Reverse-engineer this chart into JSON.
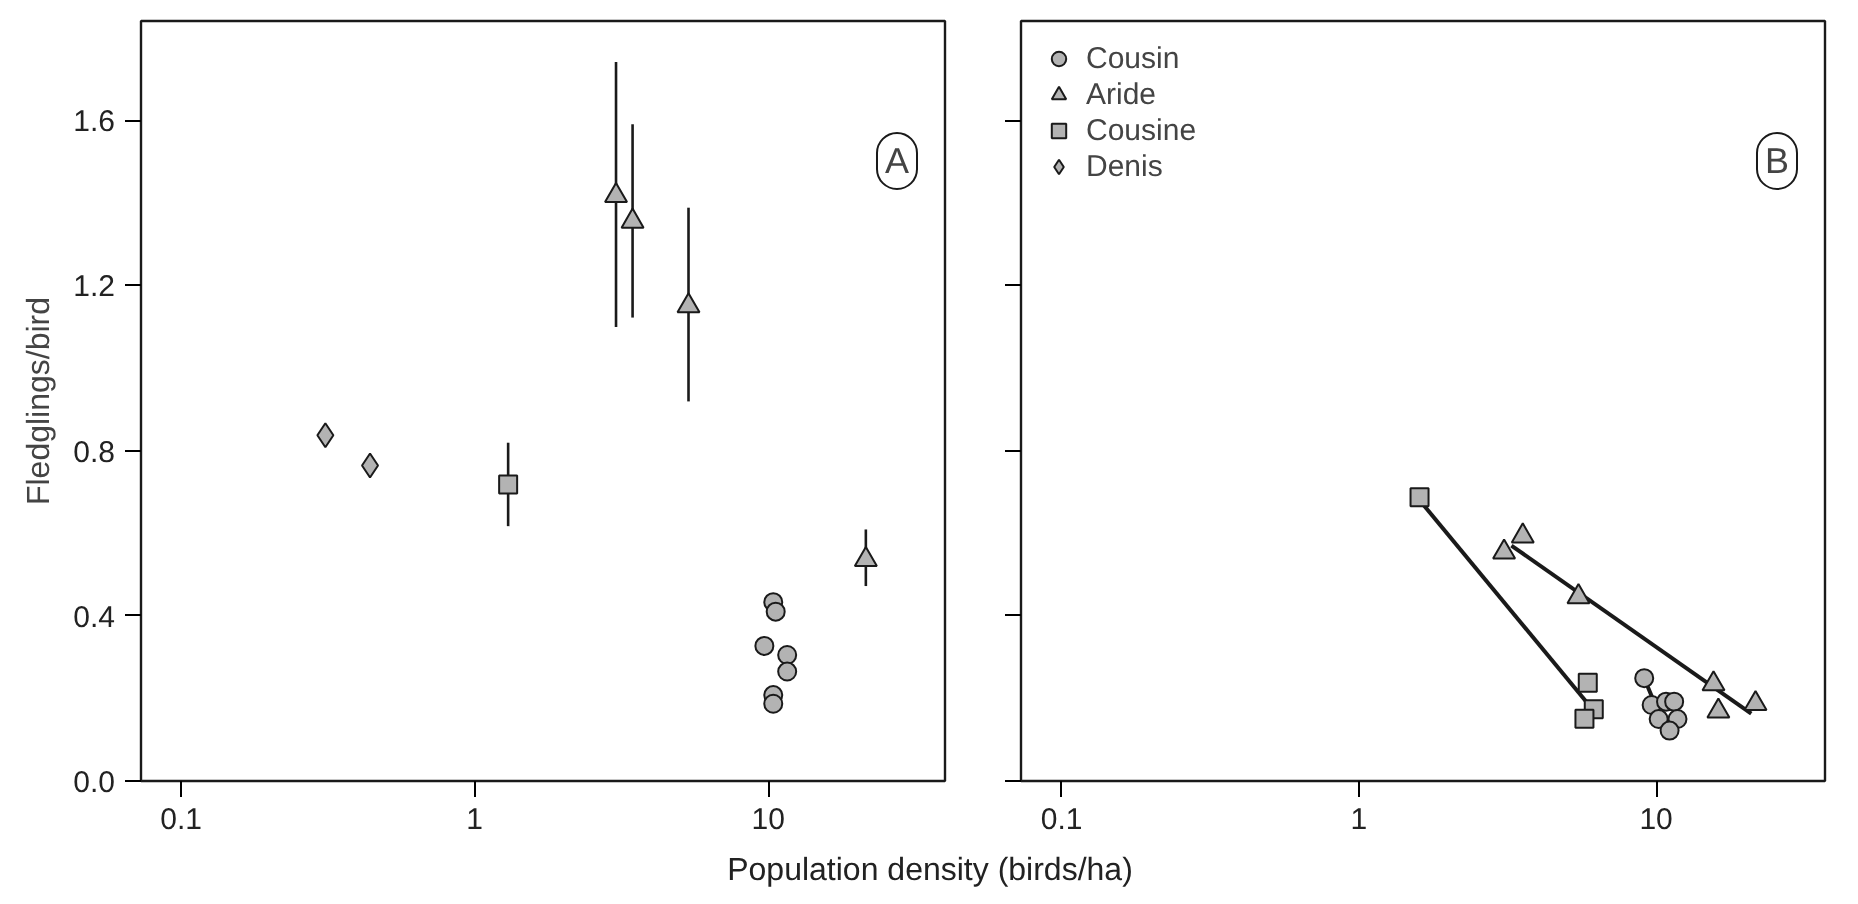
{
  "chart_data": [
    {
      "type": "scatter",
      "xlabel": "Population density (birds/ha)",
      "ylabel": "Fledglings/bird",
      "log": "x",
      "xlim": [
        0.073,
        40
      ],
      "ylim": [
        0,
        1.84
      ],
      "xticks": [
        0.1,
        1,
        10
      ],
      "yticks": [
        {
          "value": 0,
          "label": "0.0"
        },
        0.4,
        0.8,
        1.2,
        1.6
      ],
      "grid": false,
      "legend": false,
      "annotations": [
        "A"
      ],
      "series": [
        {
          "color": "#b3b3b3",
          "marker": "circle",
          "x": [
            10.4,
            10.6,
            9.7,
            11.6,
            11.6,
            10.4,
            10.4
          ],
          "values": [
            0.433,
            0.41,
            0.327,
            0.305,
            0.265,
            0.208,
            0.187
          ]
        },
        {
          "color": "#b3b3b3",
          "marker": "triangle",
          "x": [
            3.03,
            3.45,
            5.35,
            21.5
          ],
          "values": [
            1.417,
            1.355,
            1.15,
            0.536
          ],
          "errors": [
            [
              1.099,
              1.741
            ],
            [
              1.122,
              1.59
            ],
            [
              0.919,
              1.388
            ],
            [
              0.472,
              0.609
            ]
          ]
        },
        {
          "color": "#b3b3b3",
          "marker": "square",
          "x": [
            1.3
          ],
          "values": [
            0.718
          ],
          "errors": [
            [
              0.617,
              0.819
            ]
          ]
        },
        {
          "color": "#b3b3b3",
          "marker": "diamond",
          "x": [
            0.31,
            0.44
          ],
          "values": [
            0.837,
            0.764
          ]
        }
      ]
    },
    {
      "type": "scatter",
      "log": "x",
      "xlim": [
        0.073,
        37
      ],
      "ylim": [
        0,
        1.84
      ],
      "xticks": [
        0.1,
        1,
        10
      ],
      "yticks": [
        0,
        0.4,
        0.8,
        1.2,
        1.6
      ],
      "tick_labels": "x",
      "grid": false,
      "legend": "top left",
      "annotations": [
        "B"
      ],
      "series": [
        {
          "name": "Cousin",
          "color": "#b3b3b3",
          "marker": "circle",
          "x": [
            9.12,
            9.66,
            10.8,
            11.5,
            10.2,
            11.8,
            11.1
          ],
          "values": [
            0.249,
            0.184,
            0.192,
            0.192,
            0.15,
            0.15,
            0.122
          ]
        },
        {
          "name": "Aride",
          "color": "#b3b3b3",
          "marker": "triangle",
          "x": [
            3.56,
            3.08,
            5.48,
            15.6,
            16.2,
            21.6
          ],
          "values": [
            0.593,
            0.554,
            0.446,
            0.235,
            0.169,
            0.187
          ]
        },
        {
          "name": "Cousine",
          "color": "#b3b3b3",
          "marker": "square",
          "x": [
            1.6,
            5.89,
            6.17,
            5.74
          ],
          "values": [
            0.687,
            0.238,
            0.174,
            0.151
          ]
        },
        {
          "name": "Denis",
          "color": "#b3b3b3",
          "marker": "diamond"
        },
        {
          "type": "line",
          "color": "#1a1a1a",
          "marker": "none",
          "x": [
            9.12,
            10.0
          ],
          "values": [
            0.249,
            0.18
          ]
        },
        {
          "type": "line",
          "color": "#1a1a1a",
          "marker": "none",
          "x": [
            3.26,
            20.9
          ],
          "values": [
            0.57,
            0.163
          ]
        },
        {
          "type": "line",
          "color": "#1a1a1a",
          "marker": "none",
          "x": [
            1.6,
            5.85
          ],
          "values": [
            0.68,
            0.19
          ]
        }
      ]
    }
  ]
}
